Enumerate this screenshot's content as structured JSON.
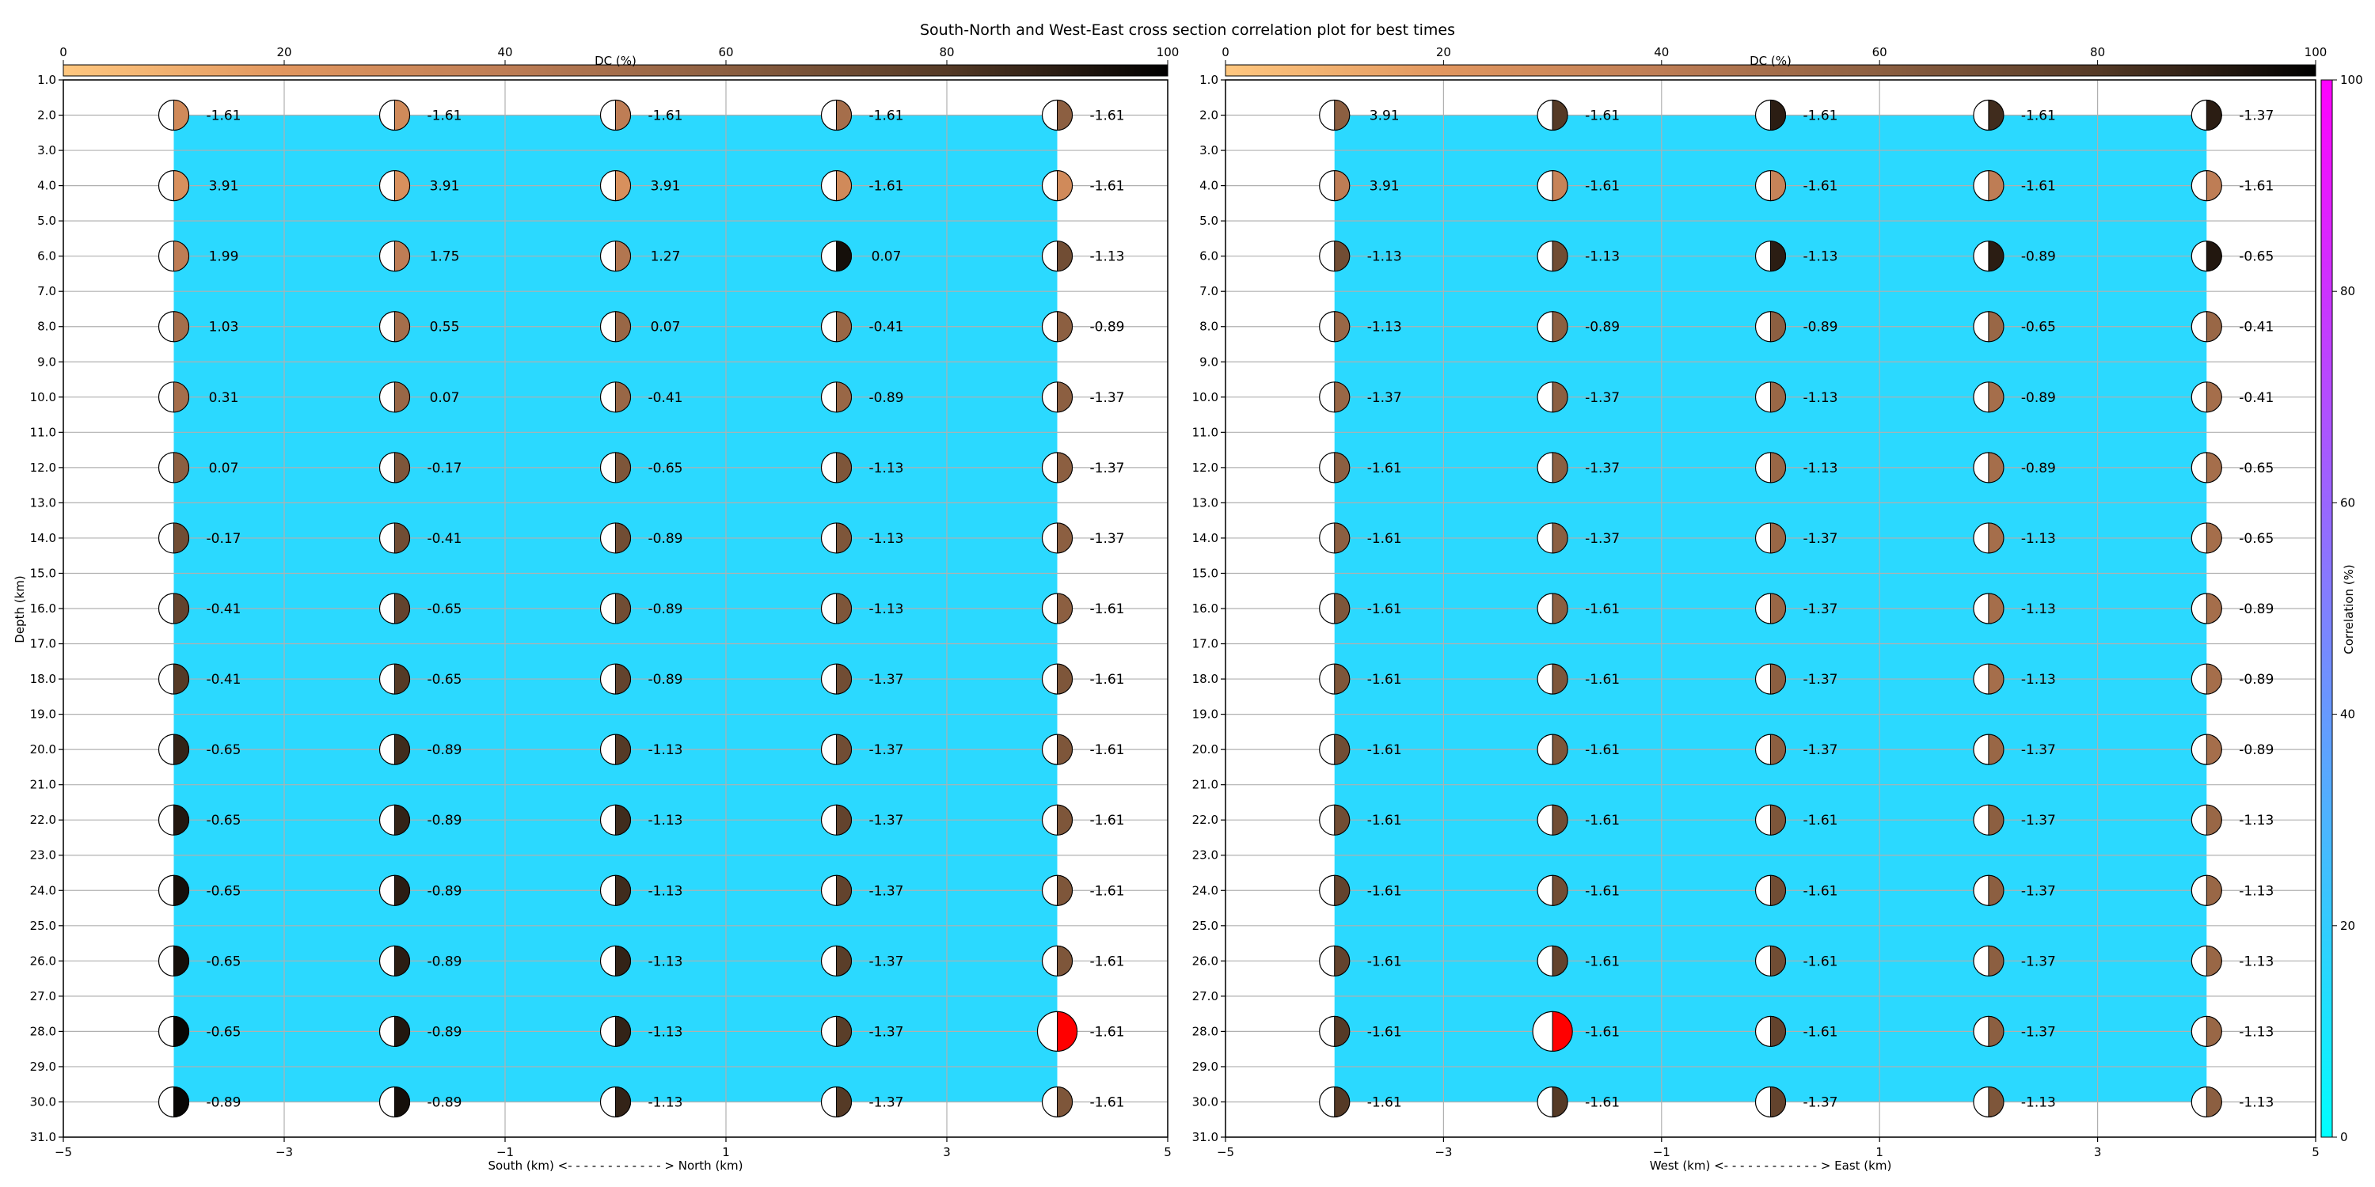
{
  "chart_data": {
    "title": "South-North and West-East cross section correlation plot for best times",
    "type": "scatter",
    "dc_colorbar": {
      "label": "DC (%)",
      "ticks": [
        "0",
        "20",
        "40",
        "60",
        "80",
        "100"
      ]
    },
    "correlation_colorbar": {
      "label": "Correlation (%)",
      "ticks": [
        "0",
        "20",
        "40",
        "60",
        "80",
        "100"
      ]
    },
    "ylabel": "Depth (km)",
    "ylim": [
      1,
      31
    ],
    "y_ticks": [
      "1.0",
      "2.0",
      "3.0",
      "4.0",
      "5.0",
      "6.0",
      "7.0",
      "8.0",
      "9.0",
      "10.0",
      "11.0",
      "12.0",
      "13.0",
      "14.0",
      "15.0",
      "16.0",
      "17.0",
      "18.0",
      "19.0",
      "20.0",
      "21.0",
      "22.0",
      "23.0",
      "24.0",
      "25.0",
      "26.0",
      "27.0",
      "28.0",
      "29.0",
      "30.0",
      "31.0"
    ],
    "x_ticks": [
      "−5",
      "−3",
      "−1",
      "1",
      "3",
      "5"
    ],
    "xlim": [
      -5,
      5
    ],
    "depths": [
      2,
      4,
      6,
      8,
      10,
      12,
      14,
      16,
      18,
      20,
      22,
      24,
      26,
      28,
      30
    ],
    "positions": [
      -4,
      -2,
      0,
      2,
      4
    ],
    "panels": [
      {
        "xlabel": "South (km) <- - - - - - - - - - - - > North (km)",
        "correlation_fill": [
          -4,
          4,
          2,
          30
        ],
        "best": {
          "depth": 28,
          "position": 4
        },
        "values": [
          [
            "-1.61",
            "-1.61",
            "-1.61",
            "-1.61",
            "-1.61"
          ],
          [
            "3.91",
            "3.91",
            "3.91",
            "-1.61",
            "-1.61"
          ],
          [
            "1.99",
            "1.75",
            "1.27",
            "0.07",
            "-1.13"
          ],
          [
            "1.03",
            "0.55",
            "0.07",
            "-0.41",
            "-0.89"
          ],
          [
            "0.31",
            "0.07",
            "-0.41",
            "-0.89",
            "-1.37"
          ],
          [
            "0.07",
            "-0.17",
            "-0.65",
            "-1.13",
            "-1.37"
          ],
          [
            "-0.17",
            "-0.41",
            "-0.89",
            "-1.13",
            "-1.37"
          ],
          [
            "-0.41",
            "-0.65",
            "-0.89",
            "-1.13",
            "-1.61"
          ],
          [
            "-0.41",
            "-0.65",
            "-0.89",
            "-1.37",
            "-1.61"
          ],
          [
            "-0.65",
            "-0.89",
            "-1.13",
            "-1.37",
            "-1.61"
          ],
          [
            "-0.65",
            "-0.89",
            "-1.13",
            "-1.37",
            "-1.61"
          ],
          [
            "-0.65",
            "-0.89",
            "-1.13",
            "-1.37",
            "-1.61"
          ],
          [
            "-0.65",
            "-0.89",
            "-1.13",
            "-1.37",
            "-1.61"
          ],
          [
            "-0.65",
            "-0.89",
            "-1.13",
            "-1.37",
            "-1.61"
          ],
          [
            "-0.89",
            "-0.89",
            "-1.13",
            "-1.37",
            "-1.61"
          ]
        ],
        "dc_percent": [
          [
            30,
            30,
            40,
            50,
            60
          ],
          [
            25,
            25,
            25,
            30,
            30
          ],
          [
            40,
            40,
            45,
            95,
            70
          ],
          [
            50,
            50,
            55,
            55,
            60
          ],
          [
            50,
            55,
            55,
            55,
            60
          ],
          [
            60,
            65,
            65,
            65,
            60
          ],
          [
            70,
            70,
            70,
            65,
            60
          ],
          [
            75,
            75,
            70,
            65,
            60
          ],
          [
            80,
            80,
            75,
            70,
            65
          ],
          [
            88,
            85,
            80,
            70,
            65
          ],
          [
            92,
            88,
            85,
            75,
            65
          ],
          [
            95,
            90,
            85,
            75,
            65
          ],
          [
            95,
            90,
            88,
            78,
            65
          ],
          [
            98,
            92,
            88,
            78,
            65
          ],
          [
            98,
            95,
            88,
            80,
            65
          ]
        ]
      },
      {
        "xlabel": "West (km) <- - - - - - - - - - - - > East (km)",
        "correlation_fill": [
          -4,
          4,
          2,
          30
        ],
        "best": {
          "depth": 28,
          "position": -2
        },
        "values": [
          [
            "3.91",
            "-1.61",
            "-1.61",
            "-1.61",
            "-1.37"
          ],
          [
            "3.91",
            "-1.61",
            "-1.61",
            "-1.61",
            "-1.61"
          ],
          [
            "-1.13",
            "-1.13",
            "-1.13",
            "-0.89",
            "-0.65"
          ],
          [
            "-1.13",
            "-0.89",
            "-0.89",
            "-0.65",
            "-0.41"
          ],
          [
            "-1.37",
            "-1.37",
            "-1.13",
            "-0.89",
            "-0.41"
          ],
          [
            "-1.61",
            "-1.37",
            "-1.13",
            "-0.89",
            "-0.65"
          ],
          [
            "-1.61",
            "-1.37",
            "-1.37",
            "-1.13",
            "-0.65"
          ],
          [
            "-1.61",
            "-1.61",
            "-1.37",
            "-1.13",
            "-0.89"
          ],
          [
            "-1.61",
            "-1.61",
            "-1.37",
            "-1.13",
            "-0.89"
          ],
          [
            "-1.61",
            "-1.61",
            "-1.37",
            "-1.37",
            "-0.89"
          ],
          [
            "-1.61",
            "-1.61",
            "-1.61",
            "-1.37",
            "-1.13"
          ],
          [
            "-1.61",
            "-1.61",
            "-1.61",
            "-1.37",
            "-1.13"
          ],
          [
            "-1.61",
            "-1.61",
            "-1.61",
            "-1.37",
            "-1.13"
          ],
          [
            "-1.61",
            "-1.61",
            "-1.61",
            "-1.37",
            "-1.13"
          ],
          [
            "-1.61",
            "-1.61",
            "-1.37",
            "-1.13",
            "-1.13"
          ]
        ],
        "dc_percent": [
          [
            60,
            80,
            90,
            85,
            90
          ],
          [
            40,
            35,
            35,
            40,
            40
          ],
          [
            70,
            70,
            90,
            90,
            92
          ],
          [
            55,
            60,
            60,
            55,
            55
          ],
          [
            55,
            60,
            55,
            50,
            50
          ],
          [
            60,
            60,
            55,
            50,
            50
          ],
          [
            60,
            60,
            55,
            50,
            50
          ],
          [
            65,
            60,
            55,
            50,
            50
          ],
          [
            65,
            65,
            60,
            50,
            50
          ],
          [
            70,
            65,
            60,
            55,
            50
          ],
          [
            70,
            70,
            65,
            60,
            55
          ],
          [
            75,
            70,
            70,
            60,
            55
          ],
          [
            75,
            75,
            70,
            60,
            55
          ],
          [
            80,
            75,
            75,
            60,
            55
          ],
          [
            80,
            80,
            75,
            65,
            60
          ]
        ]
      }
    ]
  }
}
